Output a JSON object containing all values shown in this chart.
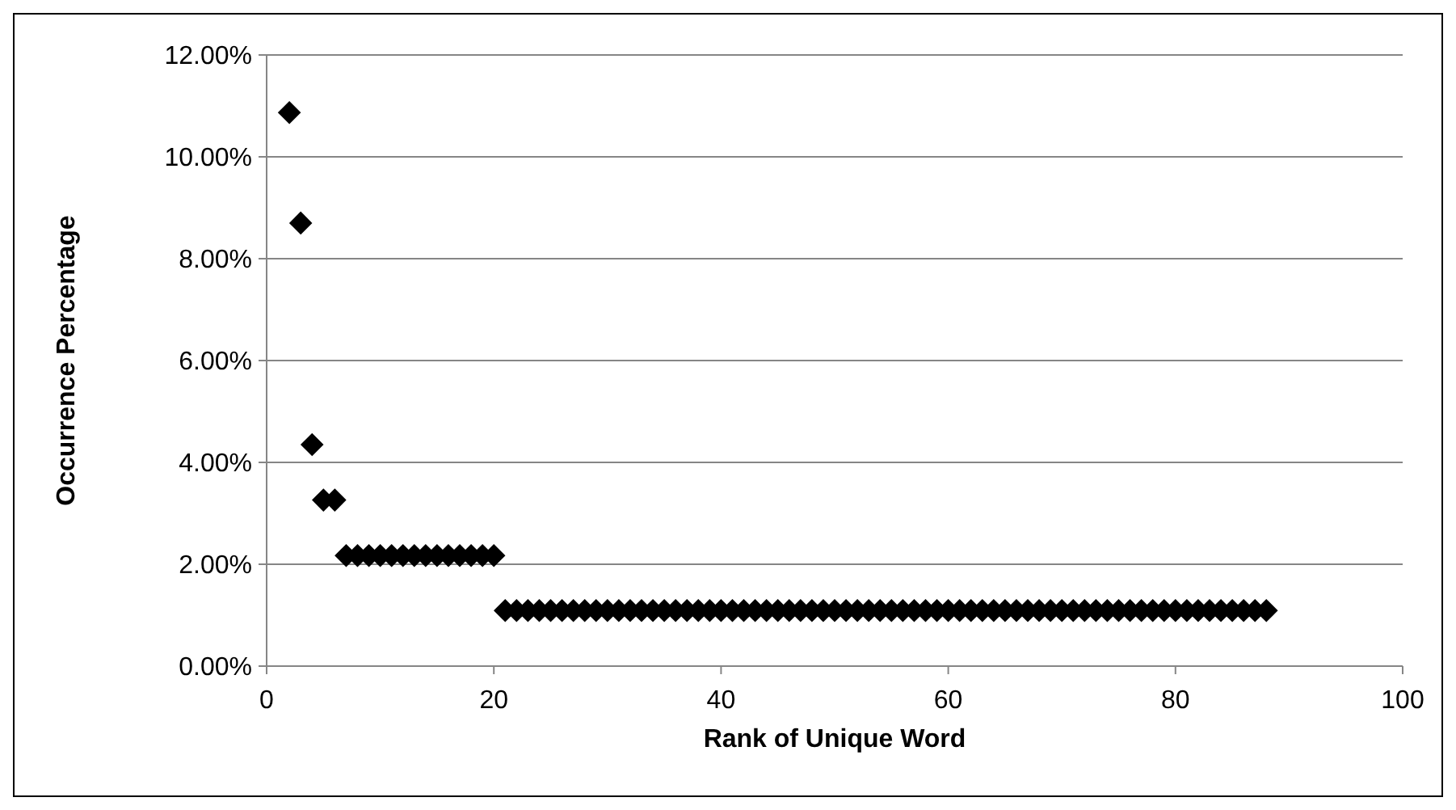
{
  "chart_data": {
    "type": "scatter",
    "xlabel": "Rank of Unique Word",
    "ylabel": "Occurrence Percentage",
    "x": [
      2,
      3,
      4,
      5,
      6,
      7,
      8,
      9,
      10,
      11,
      12,
      13,
      14,
      15,
      16,
      17,
      18,
      19,
      20,
      21,
      22,
      23,
      24,
      25,
      26,
      27,
      28,
      29,
      30,
      31,
      32,
      33,
      34,
      35,
      36,
      37,
      38,
      39,
      40,
      41,
      42,
      43,
      44,
      45,
      46,
      47,
      48,
      49,
      50,
      51,
      52,
      53,
      54,
      55,
      56,
      57,
      58,
      59,
      60,
      61,
      62,
      63,
      64,
      65,
      66,
      67,
      68,
      69,
      70,
      71,
      72,
      73,
      74,
      75,
      76,
      77,
      78,
      79,
      80,
      81,
      82,
      83,
      84,
      85,
      86,
      87,
      88
    ],
    "series": [
      {
        "color": "#000000",
        "values": [
          10.87,
          8.7,
          4.35,
          3.26,
          3.26,
          2.17,
          2.17,
          2.17,
          2.17,
          2.17,
          2.17,
          2.17,
          2.17,
          2.17,
          2.17,
          2.17,
          2.17,
          2.17,
          2.17,
          1.09,
          1.09,
          1.09,
          1.09,
          1.09,
          1.09,
          1.09,
          1.09,
          1.09,
          1.09,
          1.09,
          1.09,
          1.09,
          1.09,
          1.09,
          1.09,
          1.09,
          1.09,
          1.09,
          1.09,
          1.09,
          1.09,
          1.09,
          1.09,
          1.09,
          1.09,
          1.09,
          1.09,
          1.09,
          1.09,
          1.09,
          1.09,
          1.09,
          1.09,
          1.09,
          1.09,
          1.09,
          1.09,
          1.09,
          1.09,
          1.09,
          1.09,
          1.09,
          1.09,
          1.09,
          1.09,
          1.09,
          1.09,
          1.09,
          1.09,
          1.09,
          1.09,
          1.09,
          1.09,
          1.09,
          1.09,
          1.09,
          1.09,
          1.09,
          1.09,
          1.09,
          1.09,
          1.09,
          1.09,
          1.09,
          1.09,
          1.09,
          1.09
        ]
      }
    ],
    "xlim": [
      0,
      100
    ],
    "xticks": [
      0,
      20,
      40,
      60,
      80,
      100
    ],
    "ylim": [
      0,
      12
    ],
    "yticks": [
      {
        "value": 0,
        "label": "0.00%"
      },
      {
        "value": 2,
        "label": "2.00%"
      },
      {
        "value": 4,
        "label": "4.00%"
      },
      {
        "value": 6,
        "label": "6.00%"
      },
      {
        "value": 8,
        "label": "8.00%"
      },
      {
        "value": 10,
        "label": "10.00%"
      },
      {
        "value": 12,
        "label": "12.00%"
      }
    ],
    "grid": "y",
    "marker": "diamond"
  }
}
